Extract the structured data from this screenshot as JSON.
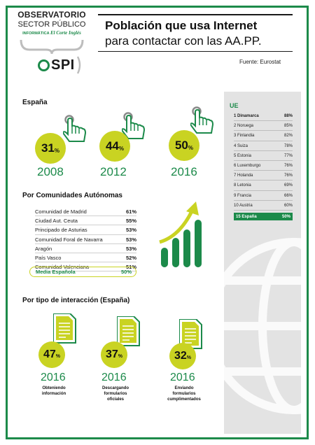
{
  "logo": {
    "line1": "OBSERVATORIO",
    "line2": "SECTOR PÚBLICO",
    "sub_left": "INFORMÁTICA",
    "sub_right": "El Corte Inglés",
    "brand": "SPI"
  },
  "header": {
    "title_bold": "Población que usa Internet",
    "title_regular": "para contactar con las AA.PP.",
    "source": "Fuente: Eurostat"
  },
  "espana": {
    "label": "España",
    "items": [
      {
        "value": "31",
        "unit": "%",
        "year": "2008"
      },
      {
        "value": "44",
        "unit": "%",
        "year": "2012"
      },
      {
        "value": "50",
        "unit": "%",
        "year": "2016"
      }
    ]
  },
  "comunidades": {
    "label": "Por Comunidades Autónomas",
    "rows": [
      {
        "name": "Comunidad de Madrid",
        "value": "61%"
      },
      {
        "name": "Ciudad Aut. Ceuta",
        "value": "55%"
      },
      {
        "name": "Principado de Asturias",
        "value": "53%"
      },
      {
        "name": "Comunidad Foral de Navarra",
        "value": "53%"
      },
      {
        "name": "Aragón",
        "value": "53%"
      },
      {
        "name": "País Vasco",
        "value": "52%"
      },
      {
        "name": "Comunidad Valenciana",
        "value": "51%"
      }
    ],
    "media": {
      "name": "Media Española",
      "value": "50%"
    }
  },
  "ue": {
    "label": "UE",
    "rows": [
      {
        "name": "1 Dinamarca",
        "value": "88%"
      },
      {
        "name": "2 Noruega",
        "value": "85%"
      },
      {
        "name": "3 Finlandia",
        "value": "82%"
      },
      {
        "name": "4 Suiza",
        "value": "78%"
      },
      {
        "name": "5 Estonia",
        "value": "77%"
      },
      {
        "name": "6 Luxemburgo",
        "value": "76%"
      },
      {
        "name": "7 Holanda",
        "value": "76%"
      },
      {
        "name": "8 Letonia",
        "value": "69%"
      },
      {
        "name": "9 Francia",
        "value": "66%"
      },
      {
        "name": "10 Austria",
        "value": "60%"
      }
    ],
    "espana": {
      "name": "15 España",
      "value": "50%"
    }
  },
  "interaccion": {
    "label": "Por tipo de interacción (España)",
    "items": [
      {
        "value": "47",
        "unit": "%",
        "year": "2016",
        "line1": "Obteniendo",
        "line2": "información",
        "line3": ""
      },
      {
        "value": "37",
        "unit": "%",
        "year": "2016",
        "line1": "Descargando",
        "line2": "formularios",
        "line3": "oficiales"
      },
      {
        "value": "32",
        "unit": "%",
        "year": "2016",
        "line1": "Enviando",
        "line2": "formularios",
        "line3": "cumplimentados"
      }
    ]
  },
  "colors": {
    "green": "#1c8a4a",
    "lime": "#c9d322",
    "grey_panel": "#e3e3e3"
  }
}
